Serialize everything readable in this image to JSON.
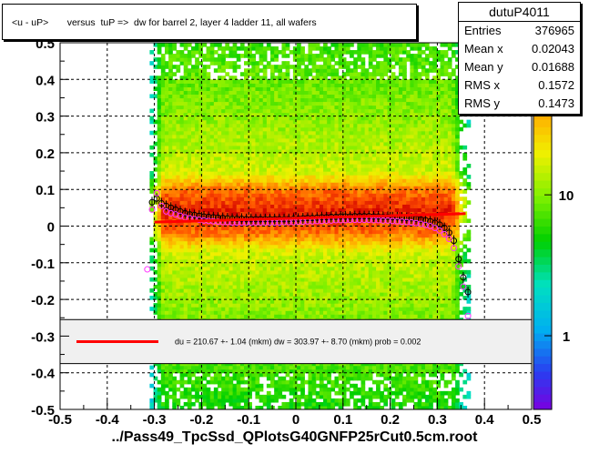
{
  "title": "<u - uP>       versus  tuP =>  dw for barrel 2, layer 4 ladder 11, all wafers",
  "footer": "../Pass49_TpcSsd_QPlotsG40GNFP25rCut0.5cm.root",
  "stats": {
    "name": "dutuP4011",
    "rows": [
      {
        "label": "Entries",
        "value": "376965"
      },
      {
        "label": "Mean x",
        "value": "0.02043"
      },
      {
        "label": "Mean y",
        "value": "0.01688"
      },
      {
        "label": "RMS x",
        "value": "0.1572"
      },
      {
        "label": "RMS y",
        "value": "0.1473"
      }
    ]
  },
  "chart_data": {
    "type": "heatmap",
    "title": "<u - uP>       versus  tuP =>  dw for barrel 2, layer 4 ladder 11, all wafers",
    "xlabel": "",
    "ylabel": "",
    "xlim": [
      -0.5,
      0.5
    ],
    "ylim": [
      -0.5,
      0.5
    ],
    "x_ticks": [
      "-0.5",
      "-0.4",
      "-0.3",
      "-0.2",
      "-0.1",
      "0",
      "0.1",
      "0.2",
      "0.3",
      "0.4",
      "0.5"
    ],
    "y_ticks": [
      "-0.5",
      "-0.4",
      "-0.3",
      "-0.2",
      "-0.1",
      "0",
      "0.1",
      "0.2",
      "0.3",
      "0.4",
      "0.5"
    ],
    "grid": true,
    "density": {
      "x_range": [
        -0.31,
        0.37
      ],
      "core_y_range": [
        -0.02,
        0.1
      ],
      "color_scale": "log",
      "z_ticks": [
        "1",
        "10"
      ],
      "z_tick_values": [
        1,
        10
      ],
      "zlim": [
        0.3,
        120
      ]
    },
    "series": [
      {
        "marker": "open-circle-black",
        "color": "#000000",
        "points": [
          [
            -0.305,
            0.065
          ],
          [
            -0.295,
            0.075
          ],
          [
            -0.285,
            0.062
          ],
          [
            -0.275,
            0.055
          ],
          [
            -0.265,
            0.05
          ],
          [
            -0.255,
            0.045
          ],
          [
            -0.245,
            0.04
          ],
          [
            -0.235,
            0.035
          ],
          [
            -0.225,
            0.032
          ],
          [
            -0.215,
            0.03
          ],
          [
            -0.205,
            0.028
          ],
          [
            -0.195,
            0.026
          ],
          [
            -0.185,
            0.025
          ],
          [
            -0.175,
            0.024
          ],
          [
            -0.165,
            0.023
          ],
          [
            -0.155,
            0.022
          ],
          [
            -0.145,
            0.021
          ],
          [
            -0.135,
            0.02
          ],
          [
            -0.125,
            0.02
          ],
          [
            -0.115,
            0.02
          ],
          [
            -0.105,
            0.019
          ],
          [
            -0.095,
            0.019
          ],
          [
            -0.085,
            0.019
          ],
          [
            -0.075,
            0.019
          ],
          [
            -0.065,
            0.019
          ],
          [
            -0.055,
            0.019
          ],
          [
            -0.045,
            0.019
          ],
          [
            -0.035,
            0.019
          ],
          [
            -0.025,
            0.019
          ],
          [
            -0.015,
            0.019
          ],
          [
            -0.005,
            0.02
          ],
          [
            0.005,
            0.02
          ],
          [
            0.015,
            0.021
          ],
          [
            0.025,
            0.022
          ],
          [
            0.035,
            0.022
          ],
          [
            0.045,
            0.023
          ],
          [
            0.055,
            0.024
          ],
          [
            0.065,
            0.024
          ],
          [
            0.075,
            0.025
          ],
          [
            0.085,
            0.025
          ],
          [
            0.095,
            0.026
          ],
          [
            0.105,
            0.026
          ],
          [
            0.115,
            0.026
          ],
          [
            0.125,
            0.027
          ],
          [
            0.135,
            0.027
          ],
          [
            0.145,
            0.027
          ],
          [
            0.155,
            0.027
          ],
          [
            0.165,
            0.026
          ],
          [
            0.175,
            0.026
          ],
          [
            0.185,
            0.025
          ],
          [
            0.195,
            0.025
          ],
          [
            0.205,
            0.024
          ],
          [
            0.215,
            0.024
          ],
          [
            0.225,
            0.023
          ],
          [
            0.235,
            0.022
          ],
          [
            0.245,
            0.021
          ],
          [
            0.255,
            0.02
          ],
          [
            0.265,
            0.018
          ],
          [
            0.275,
            0.016
          ],
          [
            0.285,
            0.013
          ],
          [
            0.295,
            0.009
          ],
          [
            0.305,
            0.004
          ],
          [
            0.315,
            -0.005
          ],
          [
            0.325,
            -0.018
          ],
          [
            0.335,
            -0.04
          ],
          [
            0.345,
            -0.09
          ],
          [
            0.355,
            -0.14
          ],
          [
            0.365,
            -0.18
          ]
        ]
      },
      {
        "marker": "open-circle-magenta",
        "color": "#ff33ff",
        "points": [
          [
            -0.315,
            -0.118
          ],
          [
            -0.305,
            0.045
          ],
          [
            -0.295,
            0.09
          ],
          [
            -0.285,
            0.055
          ],
          [
            -0.275,
            0.04
          ],
          [
            -0.265,
            0.035
          ],
          [
            -0.255,
            0.032
          ],
          [
            -0.245,
            0.028
          ],
          [
            -0.235,
            0.024
          ],
          [
            -0.225,
            0.021
          ],
          [
            -0.215,
            0.019
          ],
          [
            -0.205,
            0.017
          ],
          [
            -0.195,
            0.015
          ],
          [
            -0.185,
            0.014
          ],
          [
            -0.175,
            0.013
          ],
          [
            -0.165,
            0.012
          ],
          [
            -0.155,
            0.011
          ],
          [
            -0.145,
            0.011
          ],
          [
            -0.135,
            0.01
          ],
          [
            -0.125,
            0.01
          ],
          [
            -0.115,
            0.01
          ],
          [
            -0.105,
            0.01
          ],
          [
            -0.095,
            0.01
          ],
          [
            -0.085,
            0.01
          ],
          [
            -0.075,
            0.01
          ],
          [
            -0.065,
            0.01
          ],
          [
            -0.055,
            0.01
          ],
          [
            -0.045,
            0.01
          ],
          [
            -0.035,
            0.01
          ],
          [
            -0.025,
            0.011
          ],
          [
            -0.015,
            0.011
          ],
          [
            -0.005,
            0.011
          ],
          [
            0.005,
            0.012
          ],
          [
            0.015,
            0.012
          ],
          [
            0.025,
            0.013
          ],
          [
            0.035,
            0.013
          ],
          [
            0.045,
            0.014
          ],
          [
            0.055,
            0.014
          ],
          [
            0.065,
            0.015
          ],
          [
            0.075,
            0.015
          ],
          [
            0.085,
            0.016
          ],
          [
            0.095,
            0.016
          ],
          [
            0.105,
            0.016
          ],
          [
            0.115,
            0.017
          ],
          [
            0.125,
            0.017
          ],
          [
            0.135,
            0.017
          ],
          [
            0.145,
            0.017
          ],
          [
            0.155,
            0.017
          ],
          [
            0.165,
            0.016
          ],
          [
            0.175,
            0.016
          ],
          [
            0.185,
            0.015
          ],
          [
            0.195,
            0.015
          ],
          [
            0.205,
            0.014
          ],
          [
            0.215,
            0.013
          ],
          [
            0.225,
            0.012
          ],
          [
            0.235,
            0.011
          ],
          [
            0.245,
            0.01
          ],
          [
            0.255,
            0.008
          ],
          [
            0.265,
            0.006
          ],
          [
            0.275,
            0.003
          ],
          [
            0.285,
            0.0
          ],
          [
            0.295,
            -0.005
          ],
          [
            0.305,
            -0.012
          ],
          [
            0.315,
            -0.022
          ],
          [
            0.325,
            -0.035
          ],
          [
            0.335,
            -0.06
          ],
          [
            0.345,
            -0.11
          ],
          [
            0.355,
            -0.165
          ],
          [
            0.365,
            -0.245
          ]
        ]
      },
      {
        "marker": "line-fit",
        "color": "#ff0000",
        "points": [
          [
            -0.3,
            0.011
          ],
          [
            0.36,
            0.034
          ]
        ]
      }
    ],
    "legend": {
      "text": "du =  210.67 +-  1.04 (mkm) dw =  303.97 +-  8.70 (mkm) prob = 0.002",
      "color": "#ff0000",
      "y_range": [
        -0.375,
        -0.255
      ]
    }
  }
}
